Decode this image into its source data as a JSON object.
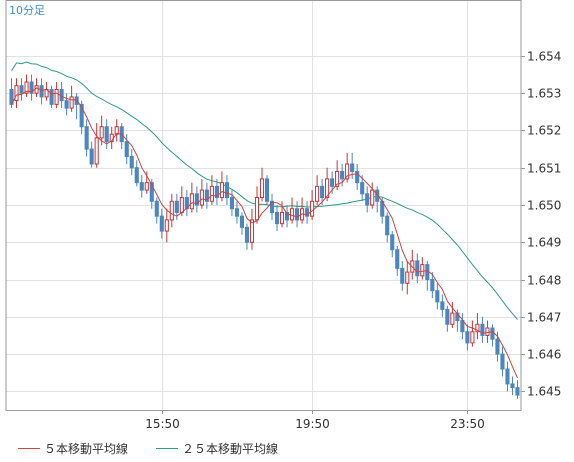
{
  "period_label": "10分足",
  "legend": {
    "ma5_label": "５本移動平均線",
    "ma25_label": "２５本移動平均線"
  },
  "colors": {
    "up": "#cc3333",
    "down": "#4a86c0",
    "ma5": "#cc4444",
    "ma25": "#2aa080",
    "grid": "#e2e2e2",
    "frame": "#999999"
  },
  "chart_data": {
    "type": "candlestick",
    "ylim": [
      1.6445,
      1.6555
    ],
    "yticks": [
      1.654,
      1.653,
      1.652,
      1.651,
      1.65,
      1.649,
      1.648,
      1.647,
      1.646,
      1.645
    ],
    "ytick_labels": [
      "1.654",
      "1.653",
      "1.652",
      "1.651",
      "1.650",
      "1.649",
      "1.648",
      "1.647",
      "1.646",
      "1.645"
    ],
    "xticks": [
      {
        "index": 30,
        "label": "15:50"
      },
      {
        "index": 60,
        "label": "19:50"
      },
      {
        "index": 91,
        "label": "23:50"
      }
    ],
    "candles": [
      [
        1.6531,
        1.6527,
        1.6534,
        1.6526
      ],
      [
        1.6528,
        1.6532,
        1.6534,
        1.6526
      ],
      [
        1.6532,
        1.653,
        1.6534,
        1.6528
      ],
      [
        1.653,
        1.6533,
        1.6535,
        1.6529
      ],
      [
        1.6533,
        1.653,
        1.6535,
        1.6528
      ],
      [
        1.653,
        1.6532,
        1.6534,
        1.6529
      ],
      [
        1.6532,
        1.6529,
        1.6534,
        1.6527
      ],
      [
        1.6529,
        1.6531,
        1.6533,
        1.6528
      ],
      [
        1.6531,
        1.6527,
        1.6532,
        1.6526
      ],
      [
        1.6527,
        1.6531,
        1.6533,
        1.6526
      ],
      [
        1.6531,
        1.6528,
        1.6533,
        1.6526
      ],
      [
        1.6528,
        1.6526,
        1.653,
        1.6524
      ],
      [
        1.6526,
        1.6529,
        1.6532,
        1.6525
      ],
      [
        1.6529,
        1.6527,
        1.653,
        1.6523
      ],
      [
        1.6527,
        1.6521,
        1.6528,
        1.6519
      ],
      [
        1.6521,
        1.6515,
        1.6523,
        1.6513
      ],
      [
        1.6515,
        1.6511,
        1.6517,
        1.651
      ],
      [
        1.6511,
        1.6518,
        1.6522,
        1.651
      ],
      [
        1.6518,
        1.6521,
        1.6524,
        1.6516
      ],
      [
        1.6521,
        1.6517,
        1.6523,
        1.6515
      ],
      [
        1.6517,
        1.6519,
        1.6521,
        1.6515
      ],
      [
        1.6519,
        1.6521,
        1.6523,
        1.6517
      ],
      [
        1.6521,
        1.6517,
        1.6522,
        1.6515
      ],
      [
        1.6517,
        1.6513,
        1.6519,
        1.6511
      ],
      [
        1.6513,
        1.651,
        1.6515,
        1.6508
      ],
      [
        1.651,
        1.6506,
        1.6512,
        1.6505
      ],
      [
        1.6506,
        1.6504,
        1.6508,
        1.6502
      ],
      [
        1.6504,
        1.6506,
        1.6509,
        1.6503
      ],
      [
        1.6506,
        1.6501,
        1.6507,
        1.6499
      ],
      [
        1.6501,
        1.6497,
        1.6502,
        1.6495
      ],
      [
        1.6497,
        1.6493,
        1.6499,
        1.6491
      ],
      [
        1.6493,
        1.6496,
        1.6499,
        1.649
      ],
      [
        1.6496,
        1.6501,
        1.6503,
        1.6494
      ],
      [
        1.6501,
        1.6498,
        1.6503,
        1.6496
      ],
      [
        1.6498,
        1.6502,
        1.6505,
        1.6497
      ],
      [
        1.6502,
        1.6499,
        1.6504,
        1.6497
      ],
      [
        1.6499,
        1.6503,
        1.6506,
        1.6498
      ],
      [
        1.6503,
        1.65,
        1.6505,
        1.6498
      ],
      [
        1.65,
        1.6504,
        1.6507,
        1.6499
      ],
      [
        1.6504,
        1.6501,
        1.6506,
        1.6499
      ],
      [
        1.6501,
        1.6505,
        1.6508,
        1.65
      ],
      [
        1.6505,
        1.6502,
        1.6507,
        1.65
      ],
      [
        1.6502,
        1.6506,
        1.6509,
        1.6501
      ],
      [
        1.6506,
        1.6502,
        1.6508,
        1.65
      ],
      [
        1.6502,
        1.6499,
        1.6504,
        1.6497
      ],
      [
        1.6499,
        1.6497,
        1.6501,
        1.6495
      ],
      [
        1.6497,
        1.6494,
        1.6498,
        1.6492
      ],
      [
        1.6494,
        1.649,
        1.6495,
        1.6488
      ],
      [
        1.649,
        1.6496,
        1.6499,
        1.6488
      ],
      [
        1.6496,
        1.6502,
        1.6505,
        1.6495
      ],
      [
        1.6502,
        1.6507,
        1.651,
        1.6501
      ],
      [
        1.6507,
        1.6501,
        1.6508,
        1.65
      ],
      [
        1.6501,
        1.6498,
        1.6503,
        1.6496
      ],
      [
        1.6498,
        1.6495,
        1.65,
        1.6493
      ],
      [
        1.6495,
        1.6498,
        1.6501,
        1.6494
      ],
      [
        1.6498,
        1.6496,
        1.65,
        1.6494
      ],
      [
        1.6496,
        1.6499,
        1.6502,
        1.6495
      ],
      [
        1.6499,
        1.6496,
        1.6501,
        1.6494
      ],
      [
        1.6496,
        1.6499,
        1.6502,
        1.6495
      ],
      [
        1.6499,
        1.6497,
        1.6501,
        1.6495
      ],
      [
        1.6497,
        1.6501,
        1.6504,
        1.6496
      ],
      [
        1.6501,
        1.6505,
        1.6508,
        1.65
      ],
      [
        1.6505,
        1.6502,
        1.6507,
        1.65
      ],
      [
        1.6502,
        1.6507,
        1.651,
        1.6501
      ],
      [
        1.6507,
        1.6505,
        1.6509,
        1.6503
      ],
      [
        1.6505,
        1.6509,
        1.6512,
        1.6504
      ],
      [
        1.6509,
        1.6507,
        1.6511,
        1.6505
      ],
      [
        1.6507,
        1.6511,
        1.6514,
        1.6506
      ],
      [
        1.6511,
        1.6509,
        1.6514,
        1.6507
      ],
      [
        1.6509,
        1.6506,
        1.6511,
        1.6504
      ],
      [
        1.6506,
        1.6503,
        1.6508,
        1.6501
      ],
      [
        1.6503,
        1.65,
        1.6505,
        1.6498
      ],
      [
        1.65,
        1.6504,
        1.6506,
        1.6499
      ],
      [
        1.6504,
        1.6501,
        1.6505,
        1.6498
      ],
      [
        1.6501,
        1.6497,
        1.6502,
        1.6495
      ],
      [
        1.6497,
        1.6492,
        1.6498,
        1.649
      ],
      [
        1.6492,
        1.6488,
        1.6493,
        1.6486
      ],
      [
        1.6488,
        1.6483,
        1.6489,
        1.6481
      ],
      [
        1.6483,
        1.6479,
        1.6485,
        1.6477
      ],
      [
        1.6479,
        1.6482,
        1.6485,
        1.6476
      ],
      [
        1.6482,
        1.6485,
        1.6488,
        1.648
      ],
      [
        1.6485,
        1.6481,
        1.6487,
        1.6479
      ],
      [
        1.6481,
        1.6484,
        1.6486,
        1.648
      ],
      [
        1.6484,
        1.648,
        1.6485,
        1.6477
      ],
      [
        1.648,
        1.6477,
        1.6482,
        1.6475
      ],
      [
        1.6477,
        1.6474,
        1.6479,
        1.6472
      ],
      [
        1.6474,
        1.6472,
        1.6476,
        1.647
      ],
      [
        1.6472,
        1.6468,
        1.6473,
        1.6466
      ],
      [
        1.6468,
        1.6471,
        1.6474,
        1.6467
      ],
      [
        1.6471,
        1.6469,
        1.6472,
        1.6466
      ],
      [
        1.6469,
        1.6466,
        1.6471,
        1.6464
      ],
      [
        1.6466,
        1.6463,
        1.6468,
        1.6461
      ],
      [
        1.6463,
        1.6466,
        1.6469,
        1.6462
      ],
      [
        1.6466,
        1.6468,
        1.6471,
        1.6464
      ],
      [
        1.6468,
        1.6465,
        1.647,
        1.6463
      ],
      [
        1.6465,
        1.6467,
        1.6469,
        1.6463
      ],
      [
        1.6467,
        1.6464,
        1.6468,
        1.6462
      ],
      [
        1.6464,
        1.646,
        1.6466,
        1.6458
      ],
      [
        1.646,
        1.6456,
        1.6462,
        1.6454
      ],
      [
        1.6456,
        1.6452,
        1.6458,
        1.645
      ],
      [
        1.6452,
        1.6451,
        1.6454,
        1.6449
      ],
      [
        1.6451,
        1.6449,
        1.6453,
        1.6448
      ]
    ]
  }
}
